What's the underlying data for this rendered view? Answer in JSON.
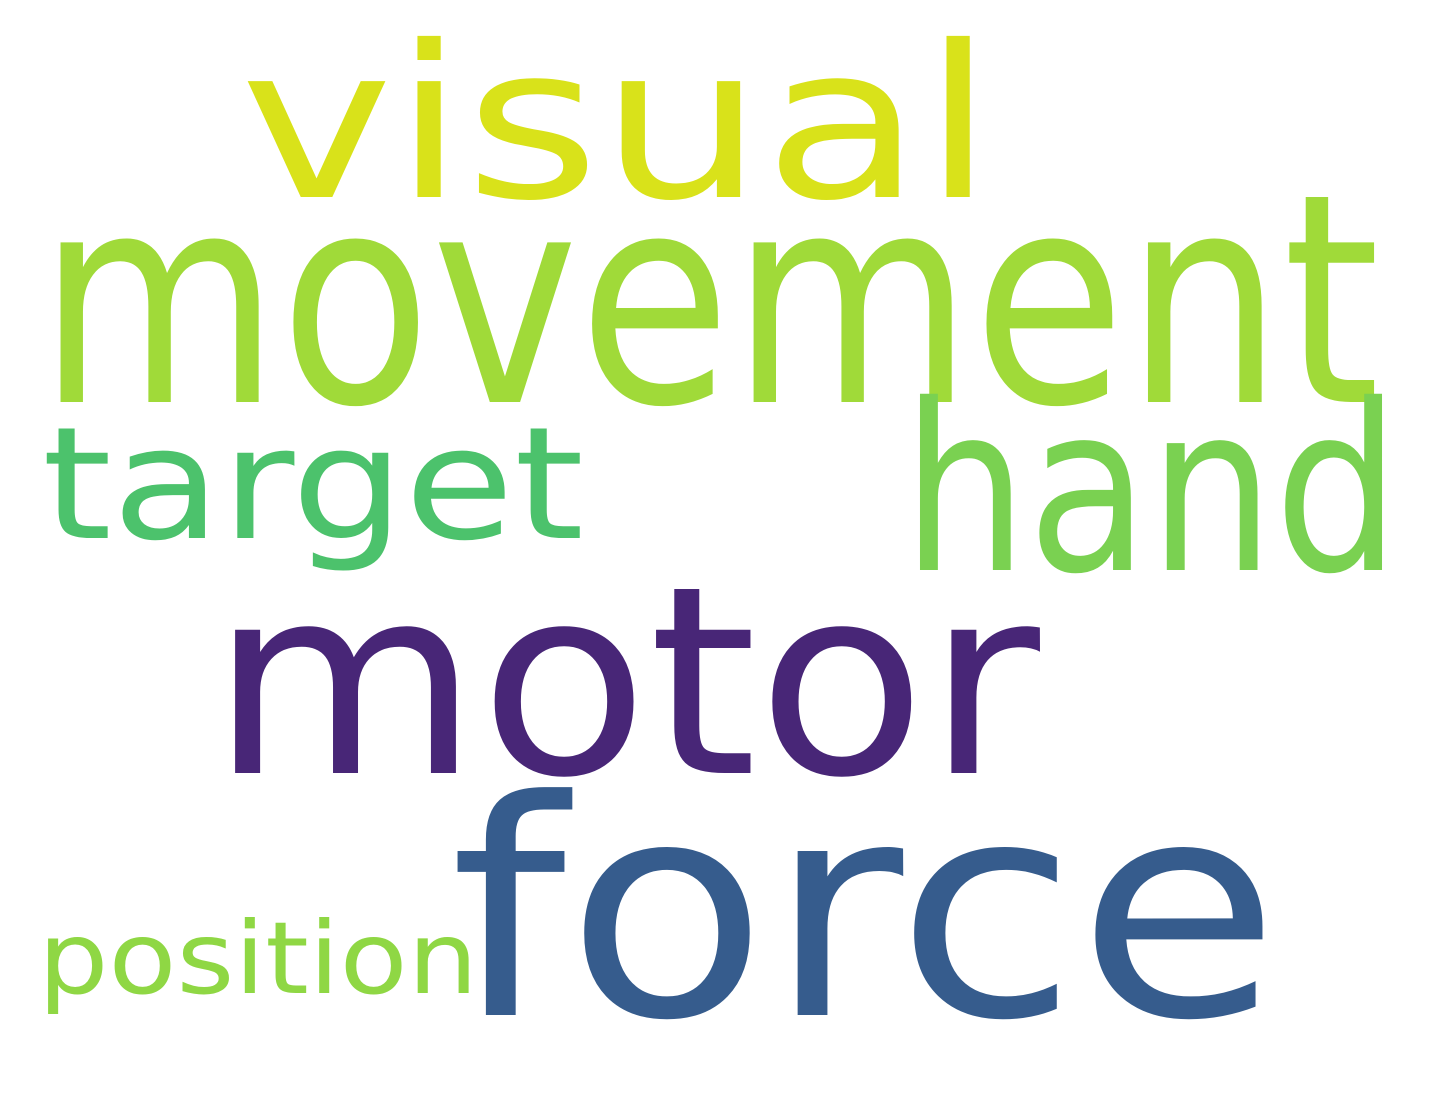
{
  "words": [
    {
      "id": "visual",
      "text": "visual",
      "color": "#d9e21a"
    },
    {
      "id": "movement",
      "text": "movement",
      "color": "#a0da39"
    },
    {
      "id": "hand",
      "text": "hand",
      "color": "#7ad151"
    },
    {
      "id": "target",
      "text": "target",
      "color": "#4cc26c"
    },
    {
      "id": "motor",
      "text": "motor",
      "color": "#482677"
    },
    {
      "id": "force",
      "text": "force",
      "color": "#365c8d"
    },
    {
      "id": "position",
      "text": "position",
      "color": "#8fd744"
    }
  ]
}
